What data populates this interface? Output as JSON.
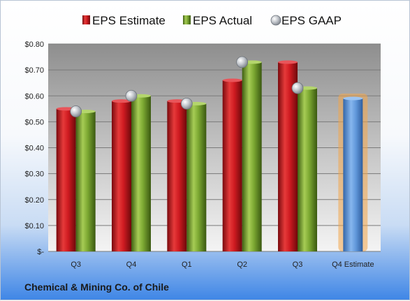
{
  "company_name": "Chemical & Mining Co. of Chile",
  "colors": {
    "estimate": "#c8141c",
    "actual": "#6f9a26",
    "gaap": "#9aa0a8",
    "future_estimate": "#5b93d6",
    "future_glow": "#f3a64a"
  },
  "chart_data": {
    "type": "bar",
    "categories": [
      "Q3",
      "Q4",
      "Q1",
      "Q2",
      "Q3",
      "Q4 Estimate"
    ],
    "series": [
      {
        "name": "EPS Estimate",
        "values": [
          0.55,
          0.58,
          0.58,
          0.66,
          0.73,
          null
        ]
      },
      {
        "name": "EPS Actual",
        "values": [
          0.54,
          0.6,
          0.57,
          0.73,
          0.63,
          null
        ]
      },
      {
        "name": "EPS GAAP",
        "values": [
          0.54,
          0.6,
          0.57,
          0.73,
          0.63,
          null
        ]
      }
    ],
    "future_estimate": {
      "category": "Q4 Estimate",
      "value": 0.59
    },
    "ylim": [
      0,
      0.8
    ],
    "yticks": [
      0,
      0.1,
      0.2,
      0.3,
      0.4,
      0.5,
      0.6,
      0.7,
      0.8
    ],
    "ytick_labels": [
      "$-",
      "$0.10",
      "$0.20",
      "$0.30",
      "$0.40",
      "$0.50",
      "$0.60",
      "$0.70",
      "$0.80"
    ],
    "grid": true,
    "legend_position": "top",
    "title": "",
    "xlabel": "",
    "ylabel": ""
  }
}
